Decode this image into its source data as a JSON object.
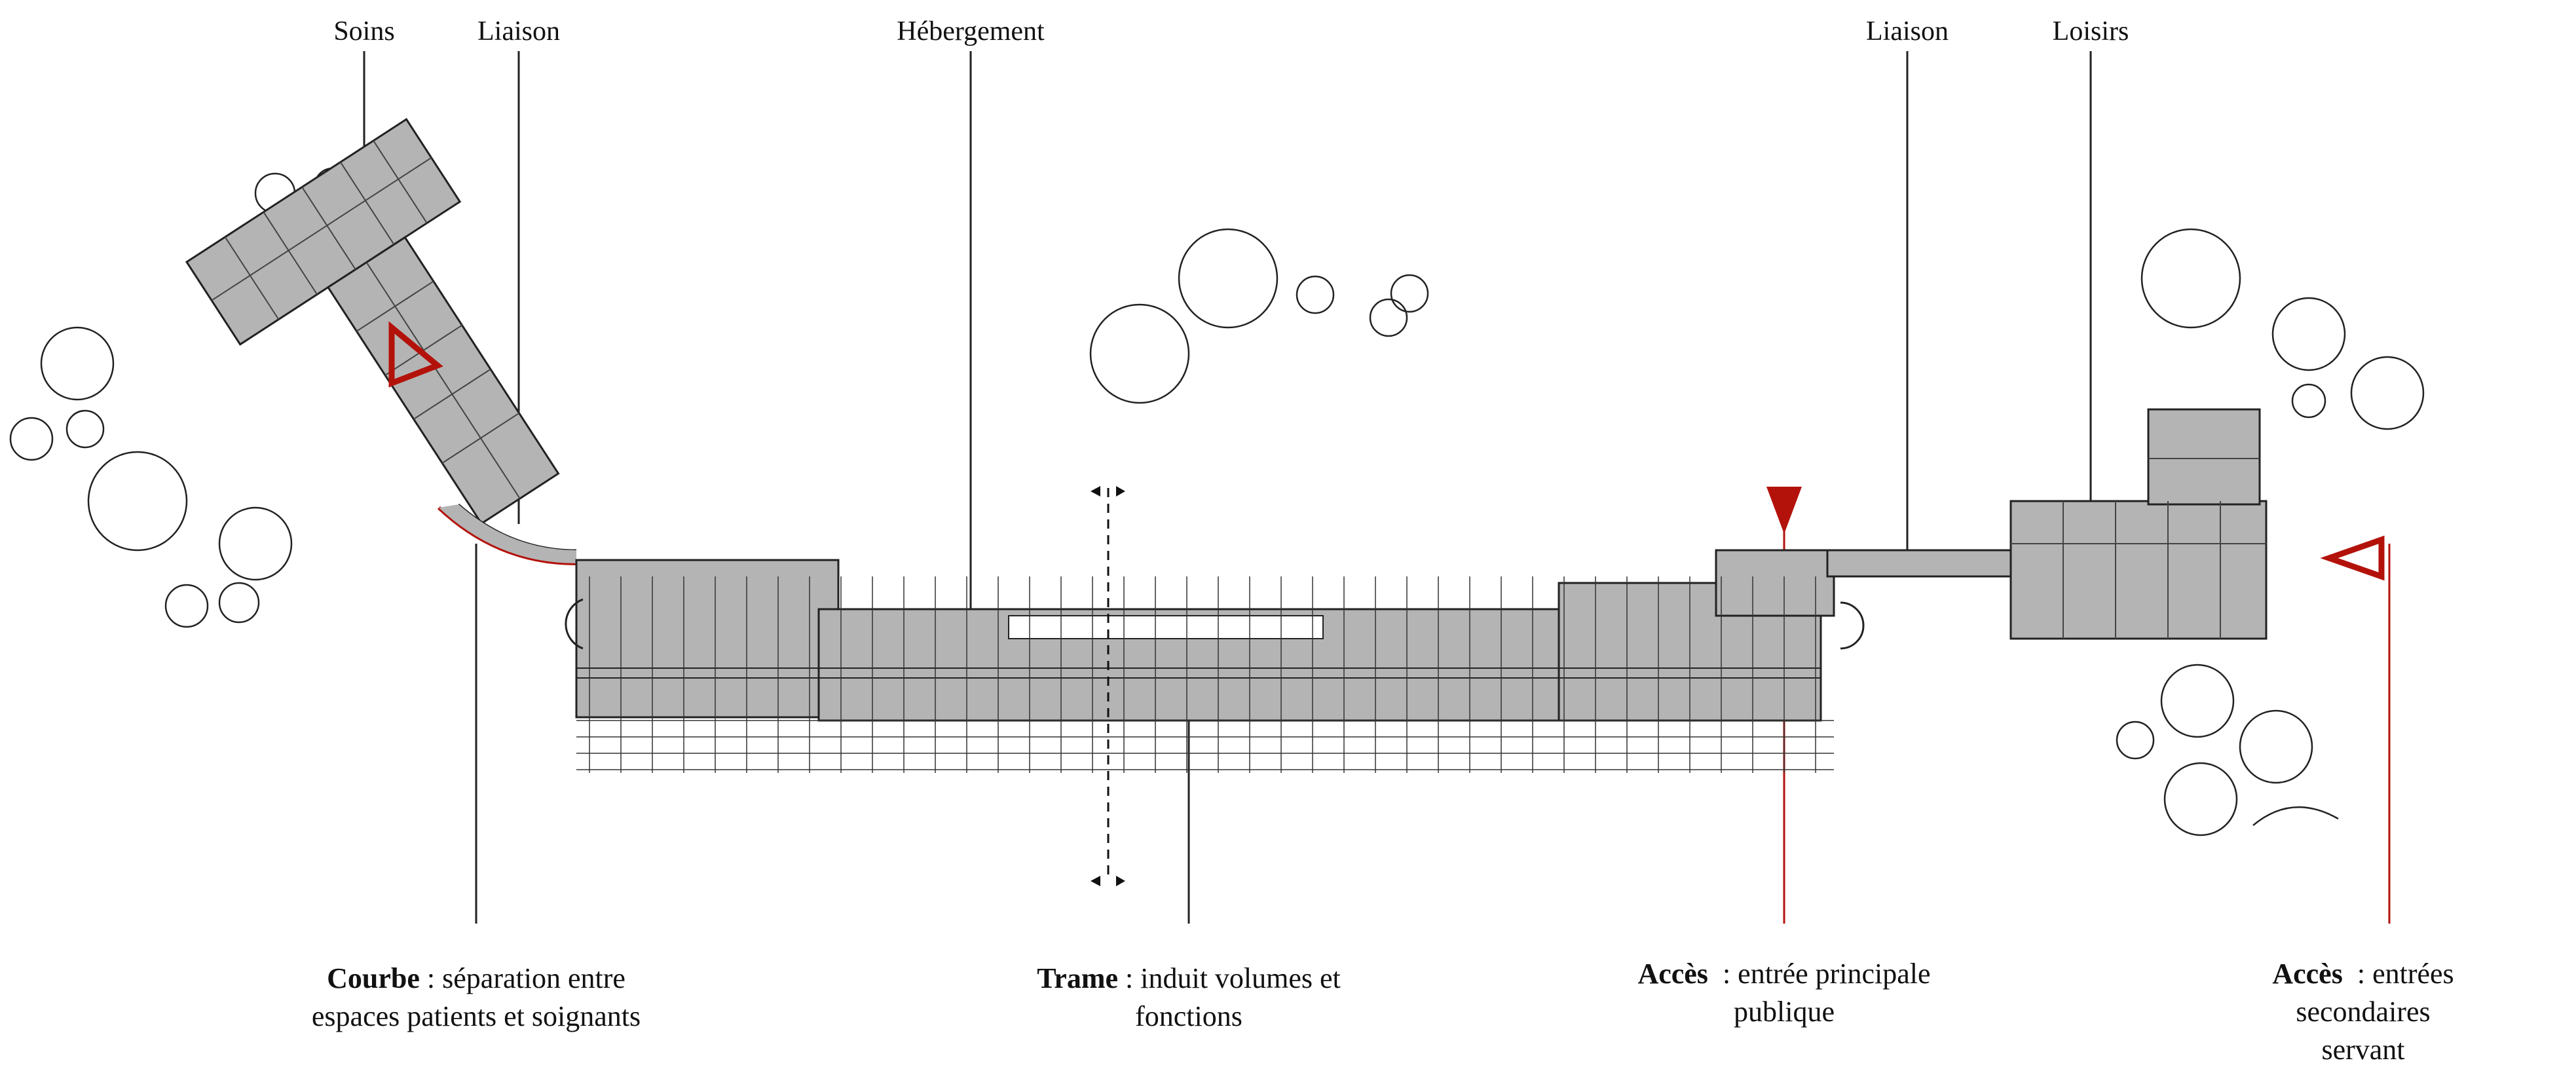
{
  "top_labels": {
    "soins": "Soins",
    "liaison_left": "Liaison",
    "hebergement": "Hébergement",
    "liaison_right": "Liaison",
    "loisirs": "Loisirs"
  },
  "captions": {
    "courbe": {
      "term": "Courbe",
      "sep": " : ",
      "line1": "séparation entre",
      "line2": "espaces patients et soignants"
    },
    "trame": {
      "term": "Trame",
      "sep": " : ",
      "line1": "induit volumes et",
      "line2": "fonctions"
    },
    "acces_principal": {
      "term": "Accès",
      "sep": "  : ",
      "line1": "entrée principale",
      "line2": "publique"
    },
    "acces_secondaire": {
      "term": "Accès",
      "sep": "  : ",
      "line1": "entrées secondaires",
      "line2": "servant"
    }
  },
  "colors": {
    "accent_red": "#b3120b",
    "building_fill": "#b4b4b4",
    "line": "#222222"
  },
  "icons": [
    "tree-icon",
    "entrance-triangle-icon",
    "section-cut-icon"
  ]
}
